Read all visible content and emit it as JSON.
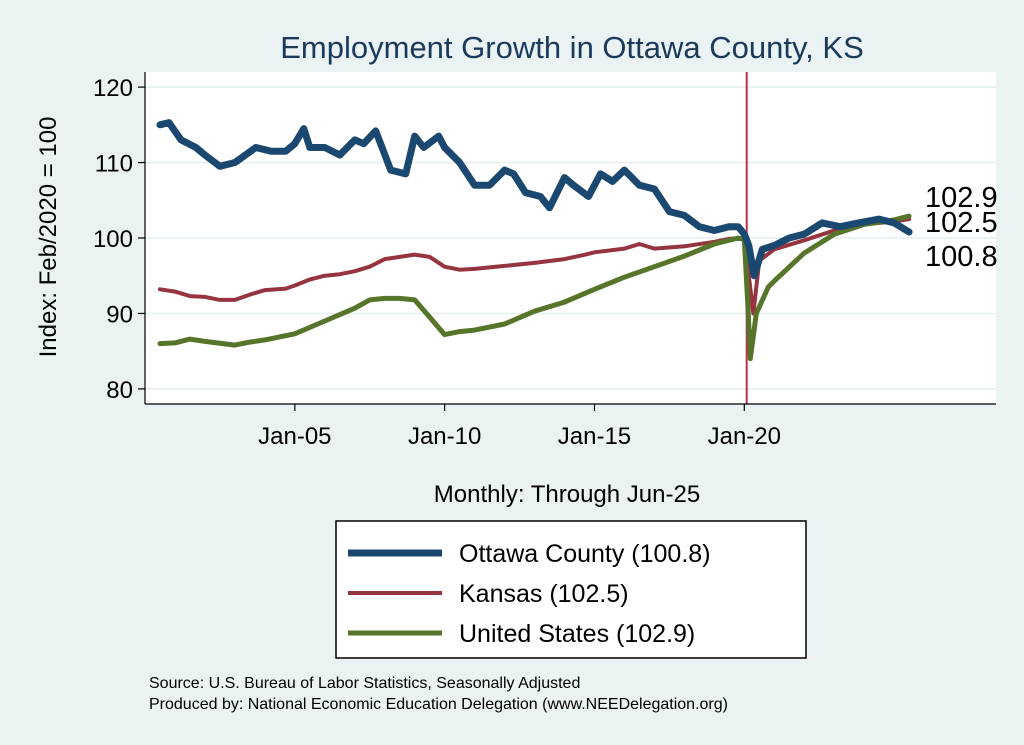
{
  "chart_data": {
    "type": "line",
    "title": "Employment Growth in Ottawa  County, KS",
    "xlabel": "Monthly: Through Jun-25",
    "ylabel": "Index: Feb/2020 = 100",
    "xlim": [
      2000.0,
      2028.4
    ],
    "ylim": [
      78,
      122
    ],
    "x_ticks": [
      {
        "value": 2005,
        "label": "Jan-05"
      },
      {
        "value": 2010,
        "label": "Jan-10"
      },
      {
        "value": 2015,
        "label": "Jan-15"
      },
      {
        "value": 2020,
        "label": "Jan-20"
      }
    ],
    "y_ticks": [
      80,
      90,
      100,
      110,
      120
    ],
    "reference_line": {
      "x": 2020.08,
      "color": "#c0304a"
    },
    "grid": true,
    "series": [
      {
        "name": "Ottawa  County (100.8)",
        "color": "#1b4870",
        "width": 7,
        "points": [
          [
            2000.5,
            115
          ],
          [
            2000.8,
            115.3
          ],
          [
            2001.2,
            113
          ],
          [
            2001.7,
            112
          ],
          [
            2002.0,
            111
          ],
          [
            2002.5,
            109.5
          ],
          [
            2003.0,
            110
          ],
          [
            2003.7,
            112
          ],
          [
            2004.2,
            111.5
          ],
          [
            2004.7,
            111.5
          ],
          [
            2005.0,
            112.5
          ],
          [
            2005.3,
            114.5
          ],
          [
            2005.5,
            112
          ],
          [
            2006.0,
            112
          ],
          [
            2006.5,
            111
          ],
          [
            2007.0,
            113
          ],
          [
            2007.3,
            112.5
          ],
          [
            2007.7,
            114.2
          ],
          [
            2008.2,
            109
          ],
          [
            2008.7,
            108.5
          ],
          [
            2009.0,
            113.5
          ],
          [
            2009.3,
            112
          ],
          [
            2009.8,
            113.5
          ],
          [
            2010.0,
            112
          ],
          [
            2010.5,
            110
          ],
          [
            2011.0,
            107
          ],
          [
            2011.5,
            107
          ],
          [
            2012.0,
            109
          ],
          [
            2012.3,
            108.5
          ],
          [
            2012.7,
            106
          ],
          [
            2013.2,
            105.5
          ],
          [
            2013.5,
            104
          ],
          [
            2014.0,
            108
          ],
          [
            2014.3,
            107
          ],
          [
            2014.8,
            105.5
          ],
          [
            2015.2,
            108.5
          ],
          [
            2015.6,
            107.5
          ],
          [
            2016.0,
            109
          ],
          [
            2016.5,
            107
          ],
          [
            2017.0,
            106.5
          ],
          [
            2017.5,
            103.5
          ],
          [
            2018.0,
            103
          ],
          [
            2018.5,
            101.5
          ],
          [
            2019.0,
            101
          ],
          [
            2019.5,
            101.5
          ],
          [
            2019.8,
            101.5
          ],
          [
            2020.0,
            100.5
          ],
          [
            2020.15,
            99
          ],
          [
            2020.33,
            95
          ],
          [
            2020.6,
            98.5
          ],
          [
            2021.0,
            99
          ],
          [
            2021.5,
            100
          ],
          [
            2022.0,
            100.5
          ],
          [
            2022.6,
            102
          ],
          [
            2023.2,
            101.5
          ],
          [
            2023.8,
            102
          ],
          [
            2024.5,
            102.5
          ],
          [
            2025.0,
            102
          ],
          [
            2025.5,
            100.8
          ]
        ]
      },
      {
        "name": "Kansas (102.5)",
        "color": "#96353f",
        "width": 4,
        "points": [
          [
            2000.5,
            93.2
          ],
          [
            2001.0,
            92.9
          ],
          [
            2001.5,
            92.3
          ],
          [
            2002.0,
            92.2
          ],
          [
            2002.5,
            91.8
          ],
          [
            2003.0,
            91.8
          ],
          [
            2003.5,
            92.5
          ],
          [
            2004.0,
            93.1
          ],
          [
            2004.7,
            93.3
          ],
          [
            2005.0,
            93.7
          ],
          [
            2005.5,
            94.5
          ],
          [
            2006.0,
            95
          ],
          [
            2006.5,
            95.2
          ],
          [
            2007.0,
            95.6
          ],
          [
            2007.5,
            96.2
          ],
          [
            2008.0,
            97.2
          ],
          [
            2008.5,
            97.5
          ],
          [
            2009.0,
            97.8
          ],
          [
            2009.5,
            97.5
          ],
          [
            2010.0,
            96.2
          ],
          [
            2010.5,
            95.8
          ],
          [
            2011.0,
            95.9
          ],
          [
            2012.0,
            96.3
          ],
          [
            2013.0,
            96.7
          ],
          [
            2014.0,
            97.2
          ],
          [
            2014.7,
            97.8
          ],
          [
            2015.0,
            98.1
          ],
          [
            2016.0,
            98.6
          ],
          [
            2016.5,
            99.2
          ],
          [
            2017.0,
            98.6
          ],
          [
            2018.0,
            98.9
          ],
          [
            2019.0,
            99.5
          ],
          [
            2019.5,
            99.9
          ],
          [
            2020.0,
            100
          ],
          [
            2020.15,
            95
          ],
          [
            2020.3,
            90
          ],
          [
            2020.5,
            97
          ],
          [
            2021.0,
            98.5
          ],
          [
            2022.0,
            99.7
          ],
          [
            2023.0,
            101
          ],
          [
            2024.0,
            101.8
          ],
          [
            2025.0,
            102.2
          ],
          [
            2025.5,
            102.5
          ]
        ]
      },
      {
        "name": "United States (102.9)",
        "color": "#57752a",
        "width": 5,
        "points": [
          [
            2000.5,
            86
          ],
          [
            2001.0,
            86.1
          ],
          [
            2001.5,
            86.6
          ],
          [
            2002.0,
            86.3
          ],
          [
            2003.0,
            85.8
          ],
          [
            2003.5,
            86.2
          ],
          [
            2004.0,
            86.5
          ],
          [
            2005.0,
            87.3
          ],
          [
            2006.0,
            89
          ],
          [
            2007.0,
            90.7
          ],
          [
            2007.5,
            91.8
          ],
          [
            2008.0,
            92
          ],
          [
            2008.5,
            92
          ],
          [
            2009.0,
            91.8
          ],
          [
            2009.5,
            89.5
          ],
          [
            2010.0,
            87.2
          ],
          [
            2010.5,
            87.6
          ],
          [
            2011.0,
            87.8
          ],
          [
            2012.0,
            88.6
          ],
          [
            2013.0,
            90.3
          ],
          [
            2014.0,
            91.5
          ],
          [
            2015.0,
            93.2
          ],
          [
            2016.0,
            94.8
          ],
          [
            2017.0,
            96.2
          ],
          [
            2018.0,
            97.6
          ],
          [
            2019.0,
            99.2
          ],
          [
            2019.8,
            100
          ],
          [
            2020.0,
            99.8
          ],
          [
            2020.12,
            91
          ],
          [
            2020.2,
            84
          ],
          [
            2020.4,
            90
          ],
          [
            2020.8,
            93.5
          ],
          [
            2021.0,
            94.3
          ],
          [
            2022.0,
            98
          ],
          [
            2023.0,
            100.5
          ],
          [
            2024.0,
            101.8
          ],
          [
            2025.0,
            102.4
          ],
          [
            2025.5,
            102.9
          ]
        ]
      }
    ],
    "end_labels": [
      "102.9",
      "102.5",
      "100.8"
    ],
    "legend": {
      "position": "bottom",
      "entries": [
        "Ottawa  County (100.8)",
        "Kansas (102.5)",
        "United States (102.9)"
      ]
    }
  },
  "source": {
    "line1": "Source: U.S. Bureau of Labor Statistics, Seasonally Adjusted",
    "line2": "Produced by: National Economic Education Delegation (www.NEEDelegation.org)"
  }
}
